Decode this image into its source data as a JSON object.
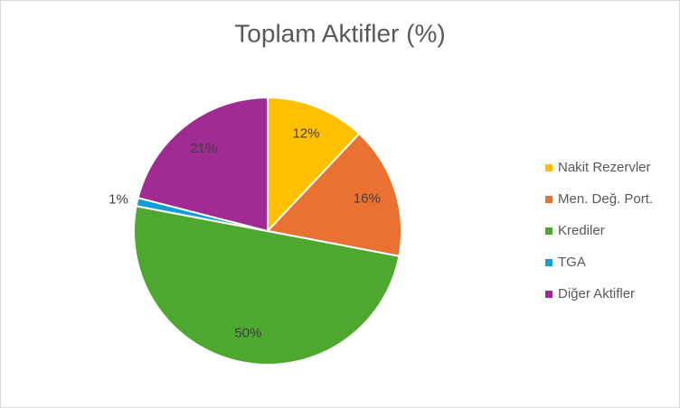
{
  "chart_data": {
    "type": "pie",
    "title": "Toplam Aktifler (%)",
    "categories": [
      "Nakit Rezervler",
      "Men. Değ. Port.",
      "Krediler",
      "TGA",
      "Diğer Aktifler"
    ],
    "values": [
      12,
      16,
      50,
      1,
      21
    ],
    "value_labels": [
      "12%",
      "16%",
      "50%",
      "1%",
      "21%"
    ],
    "colors": [
      "#FFC000",
      "#E97132",
      "#4EA72E",
      "#0F9ED5",
      "#A02B93"
    ],
    "legend": "right"
  }
}
